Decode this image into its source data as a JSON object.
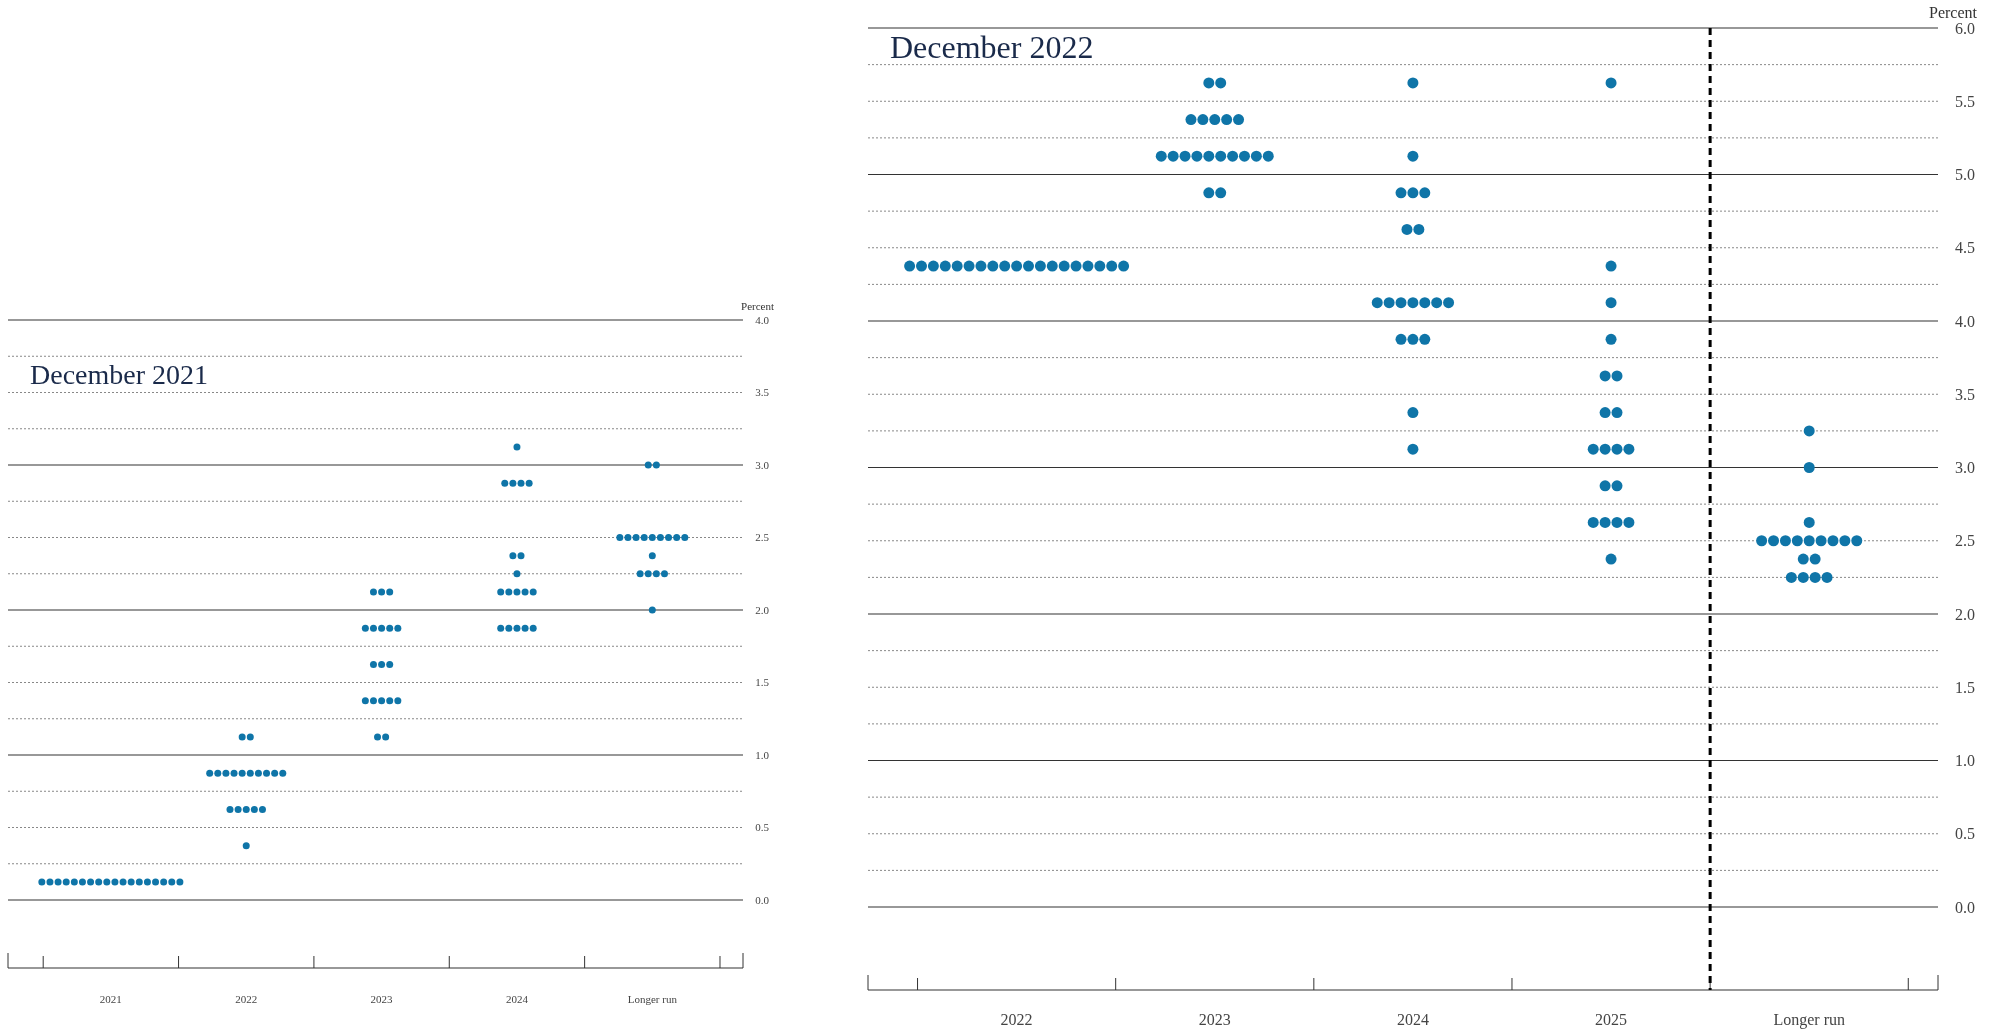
{
  "chart_data": [
    {
      "type": "scatter",
      "title": "December 2021",
      "ylabel": "Percent",
      "marker": "circle",
      "grid": "y",
      "xlim": [
        2020.24,
        2025.67
      ],
      "ylim": [
        0,
        4
      ],
      "xticks": [
        2021,
        2022,
        2023,
        2024,
        {
          "value": 2025,
          "label": "Longer run"
        }
      ],
      "yticks": [
        {
          "value": 0,
          "label": "0.0"
        },
        {
          "value": 0.25,
          "label": null
        },
        {
          "value": 0.5,
          "label": "0.5"
        },
        {
          "value": 0.75,
          "label": null
        },
        {
          "value": 1,
          "label": "1.0"
        },
        {
          "value": 1.25,
          "label": null
        },
        {
          "value": 1.5,
          "label": "1.5"
        },
        {
          "value": 1.75,
          "label": null
        },
        {
          "value": 2,
          "label": "2.0"
        },
        {
          "value": 2.25,
          "label": null
        },
        {
          "value": 2.5,
          "label": "2.5"
        },
        {
          "value": 2.75,
          "label": null
        },
        {
          "value": 3,
          "label": "3.0"
        },
        {
          "value": 3.25,
          "label": null
        },
        {
          "value": 3.5,
          "label": "3.5"
        },
        {
          "value": 3.75,
          "label": null
        },
        {
          "value": 4,
          "label": "4.0"
        }
      ],
      "series": [
        {
          "color": "#0f75a8",
          "x": [
            2020.49,
            2020.55,
            2020.61,
            2020.67,
            2020.73,
            2020.79,
            2020.85,
            2020.91,
            2020.97,
            2021.03,
            2021.09,
            2021.15,
            2021.21,
            2021.27,
            2021.33,
            2021.39,
            2021.45,
            2021.51
          ],
          "values": [
            0.125,
            0.125,
            0.125,
            0.125,
            0.125,
            0.125,
            0.125,
            0.125,
            0.125,
            0.125,
            0.125,
            0.125,
            0.125,
            0.125,
            0.125,
            0.125,
            0.125,
            0.125
          ]
        },
        {
          "color": "#0f75a8",
          "x": [
            2022,
            2021.88,
            2021.94,
            2022,
            2022.06,
            2022.12,
            2021.73,
            2021.79,
            2021.85,
            2021.91,
            2021.97,
            2022.03,
            2022.09,
            2022.15,
            2022.21,
            2022.27,
            2021.97,
            2022.03
          ],
          "values": [
            0.375,
            0.625,
            0.625,
            0.625,
            0.625,
            0.625,
            0.875,
            0.875,
            0.875,
            0.875,
            0.875,
            0.875,
            0.875,
            0.875,
            0.875,
            0.875,
            1.125,
            1.125
          ]
        },
        {
          "color": "#0f75a8",
          "x": [
            2022.97,
            2023.03,
            2022.88,
            2022.94,
            2023,
            2023.06,
            2023.12,
            2022.94,
            2023,
            2023.06,
            2022.88,
            2022.94,
            2023,
            2023.06,
            2023.12,
            2022.94,
            2023,
            2023.06
          ],
          "values": [
            1.125,
            1.125,
            1.375,
            1.375,
            1.375,
            1.375,
            1.375,
            1.625,
            1.625,
            1.625,
            1.875,
            1.875,
            1.875,
            1.875,
            1.875,
            2.125,
            2.125,
            2.125
          ]
        },
        {
          "color": "#0f75a8",
          "x": [
            2023.88,
            2023.94,
            2024,
            2024.06,
            2024.12,
            2023.88,
            2023.94,
            2024,
            2024.06,
            2024.12,
            2024,
            2023.97,
            2024.03,
            2023.91,
            2023.97,
            2024.03,
            2024.09,
            2024
          ],
          "values": [
            1.875,
            1.875,
            1.875,
            1.875,
            1.875,
            2.125,
            2.125,
            2.125,
            2.125,
            2.125,
            2.25,
            2.375,
            2.375,
            2.875,
            2.875,
            2.875,
            2.875,
            3.125
          ]
        },
        {
          "color": "#0f75a8",
          "x": [
            2025,
            2024.91,
            2024.97,
            2025.03,
            2025.09,
            2025,
            2024.76,
            2024.82,
            2024.88,
            2024.94,
            2025,
            2025.06,
            2025.12,
            2025.18,
            2025.24,
            2024.97,
            2025.03
          ],
          "values": [
            2,
            2.25,
            2.25,
            2.25,
            2.25,
            2.375,
            2.5,
            2.5,
            2.5,
            2.5,
            2.5,
            2.5,
            2.5,
            2.5,
            2.5,
            3,
            3
          ]
        }
      ]
    },
    {
      "type": "scatter",
      "title": "December 2022",
      "ylabel": "Percent",
      "marker": "circle",
      "grid": "y",
      "xlim": [
        2021.25,
        2026.65
      ],
      "ylim": [
        0,
        6
      ],
      "xticks": [
        2022,
        2023,
        2024,
        2025,
        {
          "value": 2026,
          "label": "Longer run"
        }
      ],
      "yticks": [
        {
          "value": 0,
          "label": "0.0"
        },
        {
          "value": 0.25,
          "label": null
        },
        {
          "value": 0.5,
          "label": "0.5"
        },
        {
          "value": 0.75,
          "label": null
        },
        {
          "value": 1,
          "label": "1.0"
        },
        {
          "value": 1.25,
          "label": null
        },
        {
          "value": 1.5,
          "label": "1.5"
        },
        {
          "value": 1.75,
          "label": null
        },
        {
          "value": 2,
          "label": "2.0"
        },
        {
          "value": 2.25,
          "label": null
        },
        {
          "value": 2.5,
          "label": "2.5"
        },
        {
          "value": 2.75,
          "label": null
        },
        {
          "value": 3,
          "label": "3.0"
        },
        {
          "value": 3.25,
          "label": null
        },
        {
          "value": 3.5,
          "label": "3.5"
        },
        {
          "value": 3.75,
          "label": null
        },
        {
          "value": 4,
          "label": "4.0"
        },
        {
          "value": 4.25,
          "label": null
        },
        {
          "value": 4.5,
          "label": "4.5"
        },
        {
          "value": 4.75,
          "label": null
        },
        {
          "value": 5,
          "label": "5.0"
        },
        {
          "value": 5.25,
          "label": null
        },
        {
          "value": 5.5,
          "label": "5.5"
        },
        {
          "value": 5.75,
          "label": null
        },
        {
          "value": 6,
          "label": "6.0"
        }
      ],
      "ref_lines": [
        {
          "axis": "x",
          "value": 2025.5,
          "color": "#000000",
          "line_style": "dashed"
        }
      ],
      "series": [
        {
          "color": "#0f75a8",
          "x": [
            2021.46,
            2021.52,
            2021.58,
            2021.64,
            2021.7,
            2021.76,
            2021.82,
            2021.88,
            2021.94,
            2022,
            2022.06,
            2022.12,
            2022.18,
            2022.24,
            2022.3,
            2022.36,
            2022.42,
            2022.48,
            2022.54
          ],
          "values": [
            4.375,
            4.375,
            4.375,
            4.375,
            4.375,
            4.375,
            4.375,
            4.375,
            4.375,
            4.375,
            4.375,
            4.375,
            4.375,
            4.375,
            4.375,
            4.375,
            4.375,
            4.375,
            4.375
          ]
        },
        {
          "color": "#0f75a8",
          "x": [
            2022.97,
            2023.03,
            2022.73,
            2022.79,
            2022.85,
            2022.91,
            2022.97,
            2023.03,
            2023.09,
            2023.15,
            2023.21,
            2023.27,
            2022.88,
            2022.94,
            2023,
            2023.06,
            2023.12,
            2022.97,
            2023.03
          ],
          "values": [
            4.875,
            4.875,
            5.125,
            5.125,
            5.125,
            5.125,
            5.125,
            5.125,
            5.125,
            5.125,
            5.125,
            5.125,
            5.375,
            5.375,
            5.375,
            5.375,
            5.375,
            5.625,
            5.625
          ]
        },
        {
          "color": "#0f75a8",
          "x": [
            2024,
            2024,
            2023.94,
            2024,
            2024.06,
            2023.82,
            2023.88,
            2023.94,
            2024,
            2024.06,
            2024.12,
            2024.18,
            2023.97,
            2024.03,
            2023.94,
            2024,
            2024.06,
            2024,
            2024
          ],
          "values": [
            3.125,
            3.375,
            3.875,
            3.875,
            3.875,
            4.125,
            4.125,
            4.125,
            4.125,
            4.125,
            4.125,
            4.125,
            4.625,
            4.625,
            4.875,
            4.875,
            4.875,
            5.125,
            5.625
          ]
        },
        {
          "color": "#0f75a8",
          "x": [
            2025,
            2024.91,
            2024.97,
            2025.03,
            2025.09,
            2024.97,
            2025.03,
            2024.91,
            2024.97,
            2025.03,
            2025.09,
            2024.97,
            2025.03,
            2024.97,
            2025.03,
            2025,
            2025,
            2025,
            2025
          ],
          "values": [
            2.375,
            2.625,
            2.625,
            2.625,
            2.625,
            2.875,
            2.875,
            3.125,
            3.125,
            3.125,
            3.125,
            3.375,
            3.375,
            3.625,
            3.625,
            3.875,
            4.125,
            4.375,
            5.625
          ]
        },
        {
          "color": "#0f75a8",
          "x": [
            2025.91,
            2025.97,
            2026.03,
            2026.09,
            2025.97,
            2026.03,
            2025.76,
            2025.82,
            2025.88,
            2025.94,
            2026,
            2026.06,
            2026.12,
            2026.18,
            2026.24,
            2026,
            2026,
            2026
          ],
          "values": [
            2.25,
            2.25,
            2.25,
            2.25,
            2.375,
            2.375,
            2.5,
            2.5,
            2.5,
            2.5,
            2.5,
            2.5,
            2.5,
            2.5,
            2.5,
            2.625,
            3,
            3.25
          ]
        }
      ]
    }
  ]
}
